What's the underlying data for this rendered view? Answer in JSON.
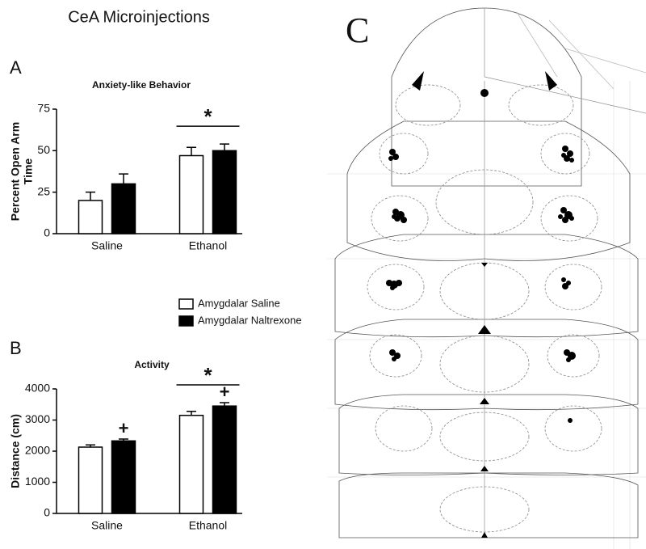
{
  "title": "CeA Microinjections",
  "atlas_label": "C",
  "chart_data": [
    {
      "type": "bar",
      "panel_label": "A",
      "title": "Anxiety-like Behavior",
      "ylabel": [
        "Percent Open Arm",
        "Time"
      ],
      "categories": [
        "Saline",
        "Ethanol"
      ],
      "series": [
        {
          "name": "Amygdalar Saline",
          "color": "#ffffff",
          "values": [
            20,
            47
          ],
          "errors": [
            5,
            5
          ]
        },
        {
          "name": "Amygdalar Naltrexone",
          "color": "#000000",
          "values": [
            30,
            50
          ],
          "errors": [
            6,
            4
          ]
        }
      ],
      "ylim": [
        0,
        75
      ],
      "yticks": [
        0,
        25,
        50,
        75
      ],
      "annotations": [
        {
          "text": "*",
          "category": "Ethanol"
        }
      ]
    },
    {
      "type": "bar",
      "panel_label": "B",
      "title": "Activity",
      "ylabel": [
        "Distance (cm)"
      ],
      "categories": [
        "Saline",
        "Ethanol"
      ],
      "series": [
        {
          "color": "#ffffff",
          "values": [
            2130,
            3150
          ],
          "errors": [
            70,
            130
          ]
        },
        {
          "color": "#000000",
          "values": [
            2330,
            3450
          ],
          "errors": [
            60,
            110
          ]
        }
      ],
      "ylim": [
        0,
        4000
      ],
      "yticks": [
        0,
        1000,
        2000,
        3000,
        4000
      ],
      "annotations": [
        {
          "text": "*",
          "category": "Ethanol"
        },
        {
          "text": "+",
          "category": "Saline"
        },
        {
          "text": "+",
          "category": "Ethanol"
        }
      ]
    }
  ]
}
